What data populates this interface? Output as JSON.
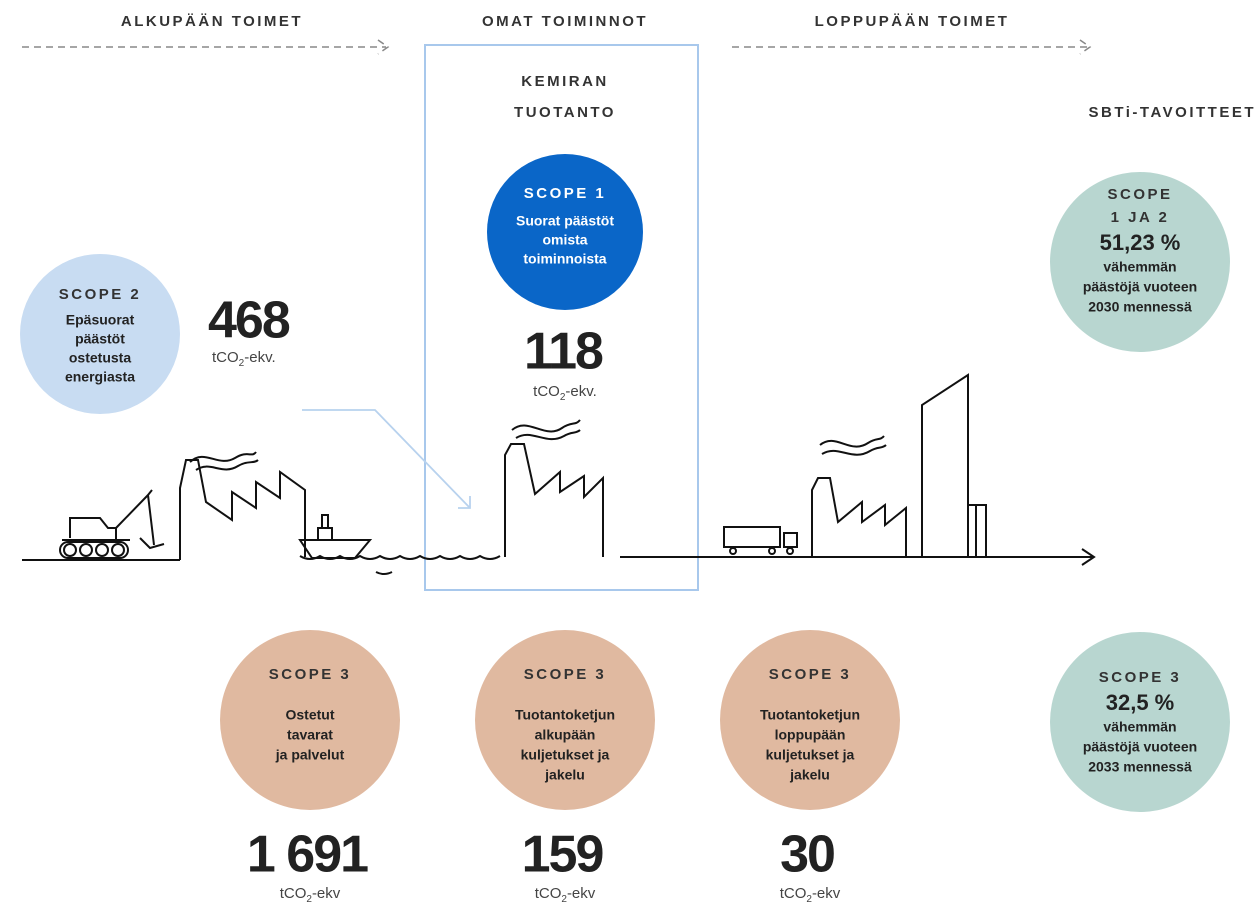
{
  "header": {
    "upstream": "ALKUPÄÄN TOIMET",
    "own": "OMAT TOIMINNOT",
    "downstream": "LOPPUPÄÄN TOIMET"
  },
  "production": {
    "title_lines": [
      "KEMIRAN",
      "TUOTANTO"
    ]
  },
  "targets_title": "SBTi-TAVOITTEET",
  "scope1": {
    "label": "SCOPE 1",
    "text_lines": [
      "Suorat päästöt",
      "omista",
      "toiminnoista"
    ],
    "value": "118",
    "unit": [
      "tCO",
      "2",
      "-ekv."
    ]
  },
  "scope2": {
    "label": "SCOPE 2",
    "text_lines": [
      "Epäsuorat",
      "päästöt",
      "ostetusta",
      "energiasta"
    ],
    "value": "468",
    "unit": [
      "tCO",
      "2",
      "-ekv."
    ]
  },
  "scope3": [
    {
      "label": "SCOPE 3",
      "text_lines": [
        "Ostetut",
        "tavarat",
        "ja palvelut"
      ],
      "value": "1 691",
      "unit": [
        "tCO",
        "2",
        "-ekv"
      ]
    },
    {
      "label": "SCOPE 3",
      "text_lines": [
        "Tuotantoketjun",
        "alkupään",
        "kuljetukset ja",
        "jakelu"
      ],
      "value": "159",
      "unit": [
        "tCO",
        "2",
        "-ekv"
      ]
    },
    {
      "label": "SCOPE 3",
      "text_lines": [
        "Tuotantoketjun",
        "loppupään",
        "kuljetukset ja",
        "jakelu"
      ],
      "value": "30",
      "unit": [
        "tCO",
        "2",
        "-ekv"
      ]
    }
  ],
  "targets": [
    {
      "label_lines": [
        "SCOPE",
        "1 JA 2"
      ],
      "value": "51,23 %",
      "text_lines": [
        "vähemmän",
        "päästöjä vuoteen",
        "2030 mennessä"
      ]
    },
    {
      "label_lines": [
        "SCOPE 3"
      ],
      "value": "32,5 %",
      "text_lines": [
        "vähemmän",
        "päästöjä vuoteen",
        "2033 mennessä"
      ]
    }
  ]
}
